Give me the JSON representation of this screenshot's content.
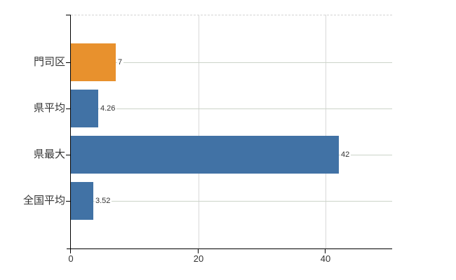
{
  "chart_data": {
    "type": "bar",
    "orientation": "horizontal",
    "title": "",
    "xlabel": "",
    "ylabel": "",
    "categories": [
      "門司区",
      "県平均",
      "県最大",
      "全国平均"
    ],
    "values": [
      7,
      4.26,
      42,
      3.52
    ],
    "value_labels": [
      "7",
      "4.26",
      "42",
      "3.52"
    ],
    "bar_colors": [
      "#e8912d",
      "#4172a5",
      "#4172a5",
      "#4172a5"
    ],
    "xlim": [
      0,
      50.4
    ],
    "x_ticks": [
      {
        "value": 0,
        "label": "0"
      },
      {
        "value": 20,
        "label": "20"
      },
      {
        "value": 40,
        "label": "40"
      }
    ],
    "grid": true,
    "legend_position": "none"
  },
  "colors": {
    "background": "#ffffff",
    "axis": "#000000",
    "h_gridline": "#ccd4c8",
    "v_gridline": "#d9d9d9",
    "top_border_dashed": "#d4d4d4",
    "bar_orange": "#e8912d",
    "bar_blue": "#4172a5",
    "text": "#333333"
  }
}
